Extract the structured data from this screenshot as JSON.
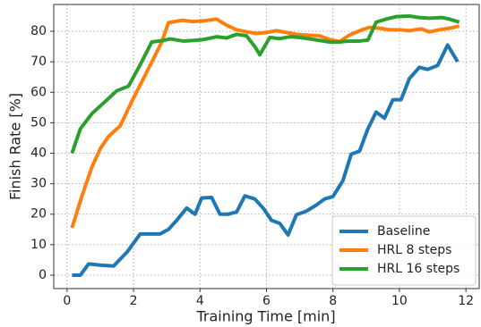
{
  "chart_data": {
    "type": "line",
    "xlabel": "Training Time [min]",
    "ylabel": "Finish Rate [%]",
    "xlim": [
      -0.4,
      12.4
    ],
    "ylim": [
      -4.4,
      88.8
    ],
    "xticks": [
      0,
      2,
      4,
      6,
      8,
      10,
      12
    ],
    "yticks": [
      0,
      10,
      20,
      30,
      40,
      50,
      60,
      70,
      80
    ],
    "grid": true,
    "legend": "lower right",
    "series": [
      {
        "name": "Baseline",
        "color": "#1f77b4",
        "x": [
          0.15,
          0.4,
          0.65,
          1.0,
          1.4,
          1.8,
          2.2,
          2.6,
          2.8,
          3.05,
          3.3,
          3.6,
          3.85,
          4.05,
          4.35,
          4.6,
          4.85,
          5.1,
          5.35,
          5.65,
          5.9,
          6.15,
          6.4,
          6.65,
          6.9,
          7.2,
          7.5,
          7.75,
          8.0,
          8.3,
          8.55,
          8.8,
          9.05,
          9.3,
          9.55,
          9.8,
          10.05,
          10.3,
          10.6,
          10.85,
          11.15,
          11.45,
          11.75
        ],
        "values": [
          0,
          0,
          3.7,
          3.3,
          3.0,
          7.5,
          13.5,
          13.5,
          13.5,
          15,
          18,
          22,
          20,
          25.3,
          25.5,
          20,
          20,
          20.7,
          26,
          25,
          22,
          18,
          17,
          13.2,
          19.8,
          21,
          23,
          25,
          25.8,
          31,
          39.7,
          40.7,
          48,
          53.5,
          51.5,
          57.5,
          57.6,
          64.5,
          68.2,
          67.5,
          68.8,
          75.5,
          70
        ]
      },
      {
        "name": "HRL 8 steps",
        "color": "#ff7f0e",
        "x": [
          0.15,
          0.45,
          0.75,
          1.0,
          1.25,
          1.6,
          1.95,
          2.3,
          2.6,
          2.85,
          3.05,
          3.45,
          3.8,
          4.1,
          4.5,
          4.8,
          5.1,
          5.4,
          5.7,
          6.0,
          6.3,
          6.6,
          6.9,
          7.3,
          7.6,
          7.9,
          8.2,
          8.5,
          8.85,
          9.1,
          9.4,
          9.7,
          10.0,
          10.3,
          10.65,
          10.9,
          11.2,
          11.5,
          11.8
        ],
        "values": [
          15.5,
          26,
          35.5,
          41.5,
          45.5,
          49,
          57,
          64.5,
          71,
          76.5,
          82.8,
          83.6,
          83.2,
          83.4,
          84,
          82,
          80.5,
          79.8,
          79.3,
          79.6,
          80.2,
          79.6,
          79,
          78.7,
          78.5,
          77.3,
          76.6,
          78.8,
          80.4,
          81.3,
          81,
          80.5,
          80.5,
          80.2,
          80.8,
          79.8,
          80.5,
          81,
          81.7
        ]
      },
      {
        "name": "HRL 16 steps",
        "color": "#2ca02c",
        "x": [
          0.15,
          0.4,
          0.75,
          1.05,
          1.5,
          1.85,
          2.2,
          2.55,
          2.9,
          3.1,
          3.5,
          3.8,
          4.1,
          4.5,
          4.8,
          5.1,
          5.4,
          5.65,
          5.8,
          6.1,
          6.4,
          6.7,
          7.0,
          7.3,
          7.6,
          7.9,
          8.2,
          8.5,
          8.8,
          9.05,
          9.3,
          9.6,
          9.9,
          10.3,
          10.6,
          10.9,
          11.3,
          11.5,
          11.8
        ],
        "values": [
          40,
          48,
          53,
          56,
          60.5,
          62,
          69,
          76.5,
          77,
          77.5,
          76.8,
          77,
          77.3,
          78.2,
          77.8,
          79,
          78.5,
          75,
          72.3,
          78,
          77.6,
          78.2,
          78,
          77.5,
          77,
          76.5,
          76.5,
          76.8,
          76.8,
          77.1,
          83,
          84,
          84.8,
          85,
          84.5,
          84.3,
          84.5,
          84,
          83
        ]
      }
    ]
  }
}
